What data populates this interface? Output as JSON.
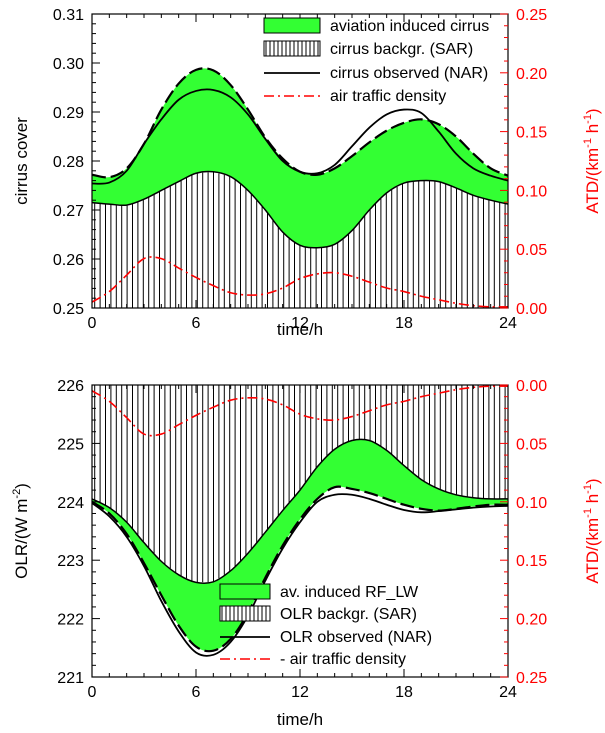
{
  "colors": {
    "aviation_fill": "#33ff33",
    "hatch": "#000000",
    "observed": "#000000",
    "traffic": "#ff0000",
    "right_axis": "#ff0000"
  },
  "chart_data": [
    {
      "type": "area",
      "xlabel": "time/h",
      "ylabel": "cirrus cover",
      "y2label_main": "ATD/(km",
      "y2label_sup1": "-1",
      "y2label_mid": " h",
      "y2label_sup2": "-1",
      "y2label_end": ")",
      "xlim": [
        0,
        24
      ],
      "ylim": [
        0.25,
        0.31
      ],
      "y2lim": [
        0.0,
        0.25
      ],
      "y2_inverted": false,
      "xticks": [
        "0",
        "6",
        "12",
        "18",
        "24"
      ],
      "yticks": [
        "0.25",
        "0.26",
        "0.27",
        "0.28",
        "0.29",
        "0.30",
        "0.31"
      ],
      "y2ticks": [
        "0.00",
        "0.05",
        "0.10",
        "0.15",
        "0.20",
        "0.25"
      ],
      "legend_position": "top-right",
      "legend": [
        {
          "label": "aviation induced cirrus",
          "kind": "fill"
        },
        {
          "label": "cirrus backgr. (SAR)",
          "kind": "hatch"
        },
        {
          "label": "cirrus observed (NAR)",
          "kind": "line"
        },
        {
          "label": "air traffic density",
          "kind": "dashdot"
        }
      ],
      "x": [
        0,
        1,
        2,
        3,
        4,
        5,
        6,
        7,
        8,
        9,
        10,
        11,
        12,
        13,
        14,
        15,
        16,
        17,
        18,
        19,
        20,
        21,
        22,
        23,
        24
      ],
      "series": [
        {
          "name": "aviation induced cirrus",
          "role": "upper",
          "values": [
            0.2772,
            0.2767,
            0.2785,
            0.2835,
            0.2905,
            0.2958,
            0.2986,
            0.2985,
            0.2955,
            0.2905,
            0.2848,
            0.2805,
            0.2778,
            0.2772,
            0.2785,
            0.281,
            0.2838,
            0.2862,
            0.2878,
            0.2885,
            0.2875,
            0.285,
            0.2815,
            0.2785,
            0.277
          ]
        },
        {
          "name": "cirrus backgr. (SAR)",
          "role": "lower",
          "values": [
            0.2715,
            0.2712,
            0.271,
            0.2722,
            0.274,
            0.2758,
            0.2775,
            0.2778,
            0.2768,
            0.274,
            0.27,
            0.2655,
            0.2628,
            0.2623,
            0.263,
            0.2658,
            0.27,
            0.2735,
            0.2755,
            0.276,
            0.2758,
            0.2745,
            0.273,
            0.272,
            0.2712
          ]
        },
        {
          "name": "cirrus observed (NAR)",
          "role": "observed",
          "values": [
            0.2754,
            0.2756,
            0.278,
            0.2835,
            0.2885,
            0.2925,
            0.2943,
            0.2945,
            0.293,
            0.2895,
            0.2845,
            0.28,
            0.2778,
            0.2775,
            0.2792,
            0.283,
            0.2868,
            0.2895,
            0.2905,
            0.2898,
            0.286,
            0.2815,
            0.2785,
            0.277,
            0.276
          ]
        },
        {
          "name": "air traffic density",
          "role": "traffic",
          "values": [
            0.005,
            0.014,
            0.028,
            0.042,
            0.042,
            0.034,
            0.026,
            0.019,
            0.013,
            0.011,
            0.012,
            0.017,
            0.025,
            0.029,
            0.03,
            0.027,
            0.022,
            0.017,
            0.014,
            0.01,
            0.007,
            0.004,
            0.002,
            0.001,
            0.001
          ]
        }
      ]
    },
    {
      "type": "area",
      "xlabel": "time/h",
      "ylabel_main": "OLR/(W m",
      "ylabel_sup": "-2",
      "ylabel_end": ")",
      "y2label_main": "ATD/(km",
      "y2label_sup1": "-1",
      "y2label_mid": " h",
      "y2label_sup2": "-1",
      "y2label_end": ")",
      "xlim": [
        0,
        24
      ],
      "ylim": [
        221,
        226
      ],
      "y2lim": [
        0.0,
        0.25
      ],
      "y2_inverted": true,
      "xticks": [
        "0",
        "6",
        "12",
        "18",
        "24"
      ],
      "yticks": [
        "221",
        "222",
        "223",
        "224",
        "225",
        "226"
      ],
      "y2ticks": [
        "0.00",
        "0.05",
        "0.10",
        "0.15",
        "0.20",
        "0.25"
      ],
      "legend_position": "bottom-right",
      "legend": [
        {
          "label": "av. induced RF_LW",
          "kind": "fill"
        },
        {
          "label": "OLR backgr. (SAR)",
          "kind": "hatch"
        },
        {
          "label": "OLR observed (NAR)",
          "kind": "line"
        },
        {
          "label": "- air traffic density",
          "kind": "dashdot"
        }
      ],
      "x": [
        0,
        1,
        2,
        3,
        4,
        5,
        6,
        7,
        8,
        9,
        10,
        11,
        12,
        13,
        14,
        15,
        16,
        17,
        18,
        19,
        20,
        21,
        22,
        23,
        24
      ],
      "series": [
        {
          "name": "av. induced RF_LW",
          "role": "outline",
          "values": [
            224.0,
            223.8,
            223.45,
            222.95,
            222.4,
            221.88,
            221.52,
            221.45,
            221.65,
            222.1,
            222.7,
            223.25,
            223.7,
            224.05,
            224.25,
            224.22,
            224.15,
            224.05,
            223.95,
            223.88,
            223.85,
            223.88,
            223.92,
            223.95,
            223.95
          ]
        },
        {
          "name": "OLR backgr. (SAR)",
          "role": "top",
          "values": [
            224.05,
            223.9,
            223.65,
            223.3,
            222.98,
            222.75,
            222.62,
            222.63,
            222.82,
            223.12,
            223.48,
            223.85,
            224.2,
            224.6,
            224.9,
            225.05,
            225.05,
            224.88,
            224.62,
            224.38,
            224.22,
            224.12,
            224.07,
            224.05,
            224.05
          ]
        },
        {
          "name": "OLR observed (NAR)",
          "role": "observed",
          "values": [
            223.98,
            223.75,
            223.4,
            222.9,
            222.3,
            221.78,
            221.42,
            221.38,
            221.6,
            222.05,
            222.65,
            223.2,
            223.65,
            224.0,
            224.12,
            224.12,
            224.05,
            223.95,
            223.86,
            223.82,
            223.84,
            223.87,
            223.9,
            223.92,
            223.93
          ]
        },
        {
          "name": "- air traffic density",
          "role": "traffic",
          "values": [
            0.005,
            0.014,
            0.028,
            0.042,
            0.042,
            0.034,
            0.026,
            0.019,
            0.013,
            0.011,
            0.012,
            0.017,
            0.025,
            0.029,
            0.03,
            0.027,
            0.022,
            0.017,
            0.014,
            0.01,
            0.007,
            0.004,
            0.002,
            0.001,
            0.001
          ]
        }
      ]
    }
  ]
}
